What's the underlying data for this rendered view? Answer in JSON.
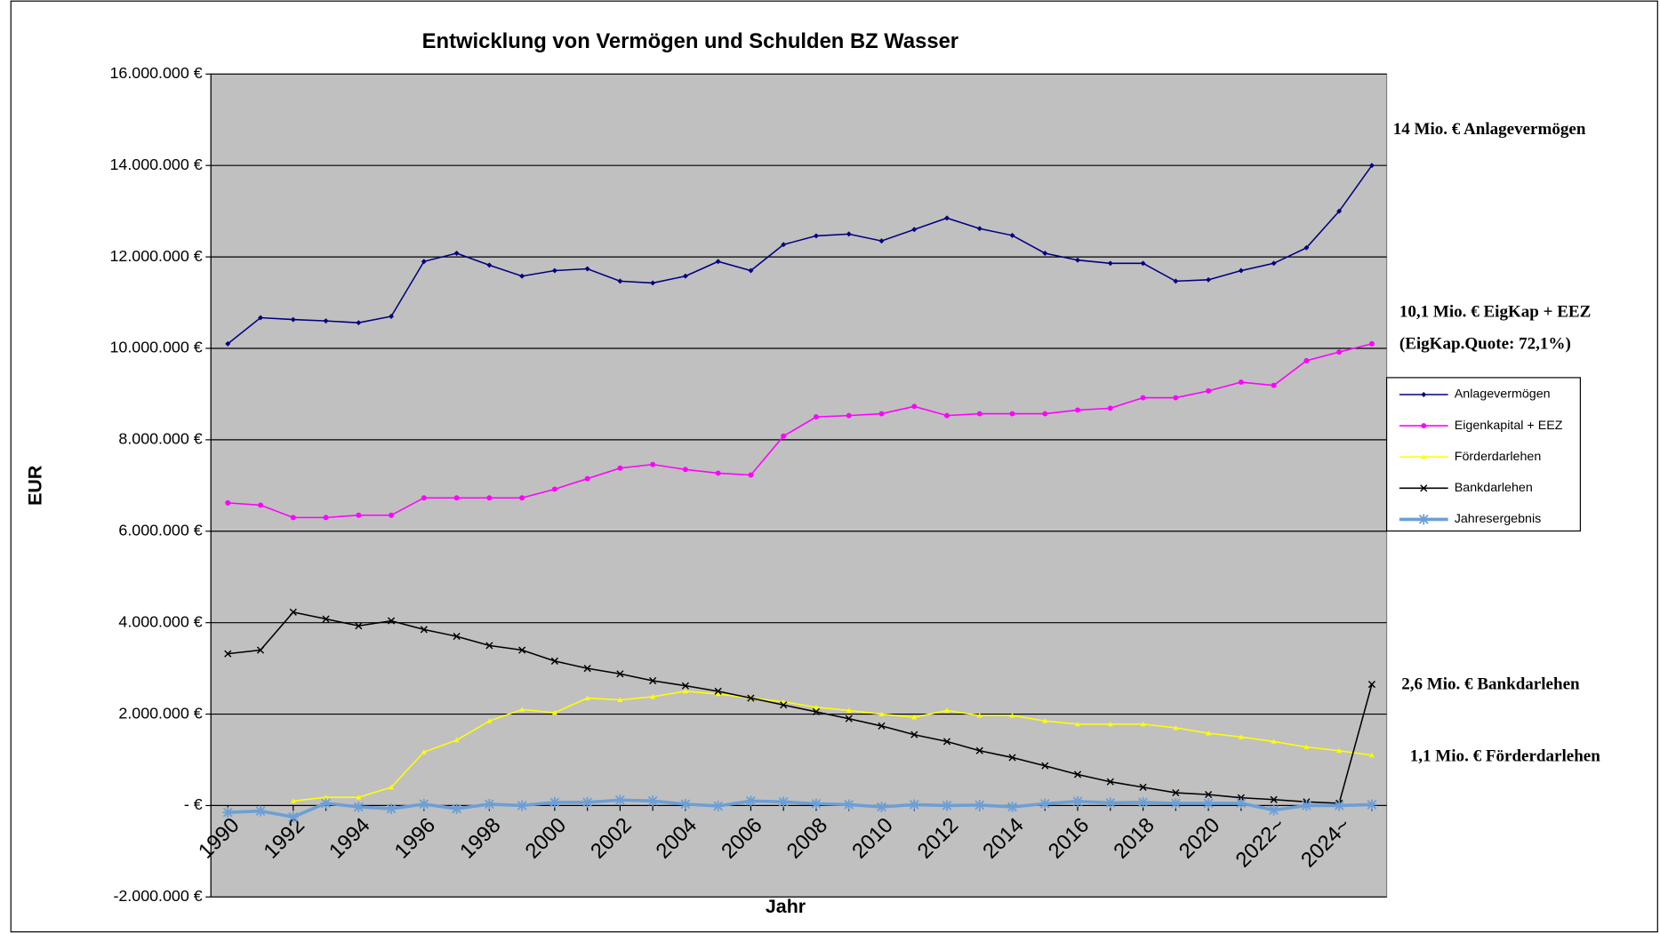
{
  "chart_data": {
    "type": "line",
    "title": "Entwicklung von Vermögen und Schulden BZ Wasser",
    "x_label": "Jahr",
    "y_label": "EUR",
    "categories": [
      "1990",
      null,
      "1992",
      null,
      "1994",
      null,
      "1996",
      null,
      "1998",
      null,
      "2000",
      null,
      "2002",
      null,
      "2004",
      null,
      "2006",
      null,
      "2008",
      null,
      "2010",
      null,
      "2012",
      null,
      "2014",
      null,
      "2016",
      null,
      "2018",
      null,
      "2020",
      null,
      "2022~",
      null,
      "2024~",
      null
    ],
    "series": [
      {
        "name": "Anlagevermögen",
        "color": "#000080",
        "marker": "diamond",
        "values": [
          10100000,
          10670000,
          10630000,
          10600000,
          10560000,
          10700000,
          11900000,
          12080000,
          11820000,
          11580000,
          11700000,
          11740000,
          11470000,
          11430000,
          11580000,
          11900000,
          11700000,
          12270000,
          12460000,
          12500000,
          12350000,
          12600000,
          12850000,
          12620000,
          12470000,
          12080000,
          11930000,
          11860000,
          11860000,
          11470000,
          11500000,
          11700000,
          11860000,
          12200000,
          13000000,
          14000000
        ]
      },
      {
        "name": "Eigenkapital + EEZ",
        "color": "#ff00ff",
        "marker": "circle",
        "values": [
          6620000,
          6570000,
          6300000,
          6300000,
          6350000,
          6350000,
          6730000,
          6730000,
          6730000,
          6730000,
          6920000,
          7150000,
          7380000,
          7460000,
          7350000,
          7270000,
          7230000,
          8080000,
          8500000,
          8530000,
          8570000,
          8730000,
          8530000,
          8570000,
          8570000,
          8570000,
          8650000,
          8690000,
          8920000,
          8920000,
          9070000,
          9260000,
          9190000,
          9730000,
          9920000,
          10100000
        ]
      },
      {
        "name": "Förderdarlehen",
        "color": "#ffff00",
        "marker": "triangle",
        "values": [
          null,
          null,
          100000,
          180000,
          180000,
          400000,
          1170000,
          1430000,
          1850000,
          2100000,
          2030000,
          2350000,
          2310000,
          2380000,
          2500000,
          2440000,
          2350000,
          2270000,
          2150000,
          2080000,
          2000000,
          1930000,
          2080000,
          1970000,
          1970000,
          1850000,
          1780000,
          1780000,
          1780000,
          1700000,
          1580000,
          1500000,
          1400000,
          1280000,
          1200000,
          1100000
        ]
      },
      {
        "name": "Bankdarlehen",
        "color": "#000000",
        "marker": "x",
        "values": [
          3320000,
          3400000,
          4230000,
          4080000,
          3930000,
          4040000,
          3850000,
          3700000,
          3500000,
          3400000,
          3160000,
          3000000,
          2880000,
          2730000,
          2620000,
          2500000,
          2350000,
          2200000,
          2050000,
          1900000,
          1740000,
          1550000,
          1400000,
          1200000,
          1050000,
          870000,
          680000,
          520000,
          400000,
          280000,
          240000,
          170000,
          130000,
          80000,
          50000,
          2650000
        ]
      },
      {
        "name": "Jahresergebnis",
        "color": "#6c9fd6",
        "marker": "star",
        "values": [
          -150000,
          -120000,
          -250000,
          50000,
          -30000,
          -70000,
          30000,
          -70000,
          30000,
          0,
          70000,
          70000,
          120000,
          100000,
          30000,
          -10000,
          100000,
          80000,
          40000,
          20000,
          -30000,
          20000,
          0,
          10000,
          -30000,
          40000,
          90000,
          60000,
          70000,
          50000,
          50000,
          50000,
          -100000,
          0,
          0,
          20000
        ]
      }
    ],
    "ylim": [
      -2000000,
      16000000
    ],
    "yticks": [
      {
        "value": -2000000,
        "label": "-2.000.000 €"
      },
      {
        "value": 0,
        "label": "-   €"
      },
      {
        "value": 2000000,
        "label": "2.000.000 €"
      },
      {
        "value": 4000000,
        "label": "4.000.000 €"
      },
      {
        "value": 6000000,
        "label": "6.000.000 €"
      },
      {
        "value": 8000000,
        "label": "8.000.000 €"
      },
      {
        "value": 10000000,
        "label": "10.000.000 €"
      },
      {
        "value": 12000000,
        "label": "12.000.000 €"
      },
      {
        "value": 14000000,
        "label": "14.000.000 €"
      },
      {
        "value": 16000000,
        "label": "16.000.000 €"
      }
    ],
    "grid": true,
    "legend": "right",
    "annotations": [
      "14 Mio. € Anlagevermögen",
      "10,1 Mio. € EigKap + EEZ",
      "(EigKap.Quote: 72,1%)",
      "2,6 Mio. € Bankdarlehen",
      "1,1 Mio. € Förderdarlehen"
    ]
  }
}
